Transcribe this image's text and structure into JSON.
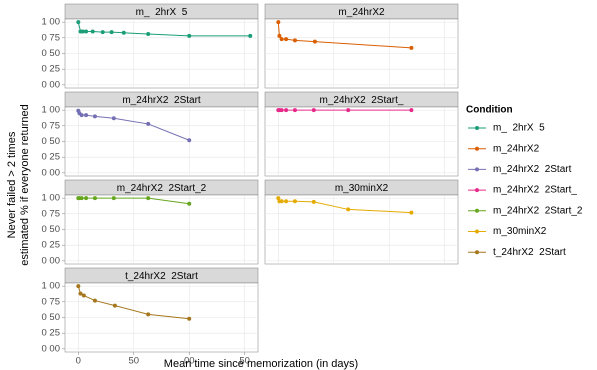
{
  "chart_data": {
    "type": "line",
    "x_label": "Mean time since memorization (in days)",
    "y_label": [
      "Never failed > 2 times",
      "estimated % if everyone returned"
    ],
    "legend_title": "Condition",
    "xlim": [
      -12,
      162
    ],
    "ylim": [
      -0.05,
      1.05
    ],
    "xticks": [
      0,
      50,
      {
        "value": 100,
        "label": "00"
      },
      {
        "value": 150,
        "label": "50"
      }
    ],
    "yticks": [
      {
        "value": 0,
        "label": "0 00"
      },
      {
        "value": 0.25,
        "label": "0 25"
      },
      {
        "value": 0.5,
        "label": "0 50"
      },
      {
        "value": 0.75,
        "label": "0 75"
      },
      {
        "value": 1,
        "label": "1 00"
      }
    ],
    "grid": true,
    "series": [
      {
        "name": "m_  2hrX  5",
        "color": "#1b9e77",
        "x": [
          0,
          2,
          4,
          7,
          13,
          22,
          30,
          41,
          63,
          100,
          155
        ],
        "values": [
          1.0,
          0.85,
          0.85,
          0.85,
          0.85,
          0.84,
          0.84,
          0.83,
          0.81,
          0.78,
          0.78
        ]
      },
      {
        "name": "m_24hrX2",
        "color": "#d95f02",
        "x": [
          0,
          1,
          3,
          7,
          15,
          33,
          120
        ],
        "values": [
          1.0,
          0.78,
          0.73,
          0.73,
          0.71,
          0.69,
          0.59
        ]
      },
      {
        "name": "m_24hrX2  2Start",
        "color": "#7570b3",
        "x": [
          0,
          1,
          3,
          7,
          15,
          32,
          63,
          100
        ],
        "values": [
          0.99,
          0.95,
          0.92,
          0.92,
          0.9,
          0.87,
          0.78,
          0.52
        ]
      },
      {
        "name": "m_24hrX2  2Start_",
        "color": "#e7298a",
        "x": [
          0,
          1,
          3,
          7,
          15,
          32,
          63,
          120
        ],
        "values": [
          1.0,
          1.0,
          1.0,
          1.0,
          1.0,
          1.0,
          1.0,
          1.0
        ]
      },
      {
        "name": "m_24hrX2  2Start_2",
        "color": "#66a61e",
        "x": [
          0,
          1,
          3,
          7,
          15,
          32,
          63,
          100
        ],
        "values": [
          1.0,
          1.0,
          1.0,
          1.0,
          1.0,
          1.0,
          1.0,
          0.91
        ]
      },
      {
        "name": "m_30minX2",
        "color": "#e6ab02",
        "x": [
          0,
          1,
          3,
          7,
          15,
          32,
          63,
          120
        ],
        "values": [
          1.0,
          0.95,
          0.95,
          0.95,
          0.95,
          0.94,
          0.82,
          0.77
        ]
      },
      {
        "name": "t_24hrX2  2Start",
        "color": "#a6761d",
        "x": [
          0,
          2,
          5,
          15,
          33,
          63,
          100
        ],
        "values": [
          1.0,
          0.88,
          0.85,
          0.77,
          0.69,
          0.55,
          0.48
        ]
      }
    ]
  }
}
